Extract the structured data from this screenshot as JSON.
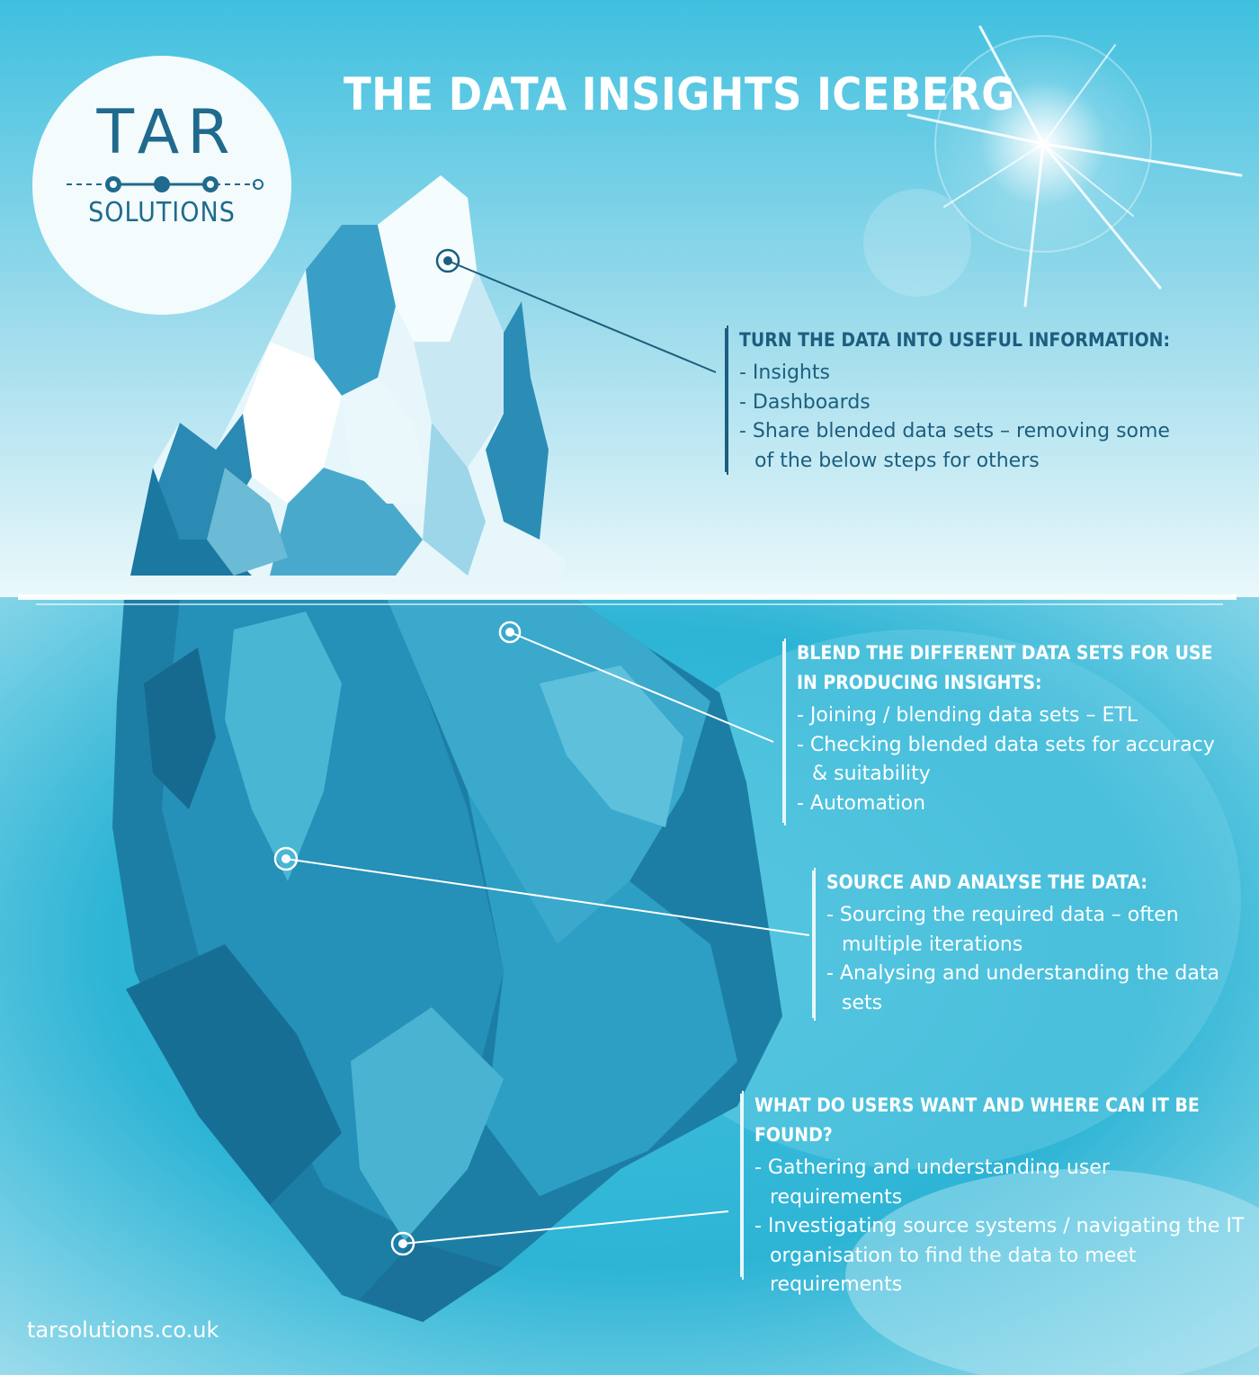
{
  "title": "THE DATA INSIGHTS ICEBERG",
  "logo": {
    "main": "TAR",
    "sub": "SOLUTIONS"
  },
  "sections": [
    {
      "heading": "TURN THE DATA INTO USEFUL INFORMATION:",
      "items": [
        "- Insights",
        "- Dashboards",
        "- Share blended data sets – removing some of the below steps for others"
      ]
    },
    {
      "heading": "BLEND THE DIFFERENT DATA SETS FOR USE IN PRODUCING INSIGHTS:",
      "items": [
        "- Joining / blending data sets – ETL",
        "- Checking blended data sets for accuracy & suitability",
        "- Automation"
      ]
    },
    {
      "heading": "SOURCE AND ANALYSE THE DATA:",
      "items": [
        "- Sourcing the required data – often multiple iterations",
        "- Analysing and understanding the data sets"
      ]
    },
    {
      "heading": "WHAT DO USERS WANT AND WHERE CAN IT BE FOUND?",
      "items": [
        "- Gathering and understanding user requirements",
        "- Investigating source systems / navigating the IT organisation to find the data to meet requirements"
      ]
    }
  ],
  "footer": "tarsolutions.co.uk",
  "colors": {
    "sky_top": "#4cc3e0",
    "sky_bottom": "#e8f7fb",
    "water": "#2fb7d6",
    "text_dark": "#1c5e7e",
    "ice_dark": "#1d7fa6",
    "ice_light": "#f2fbfd"
  }
}
